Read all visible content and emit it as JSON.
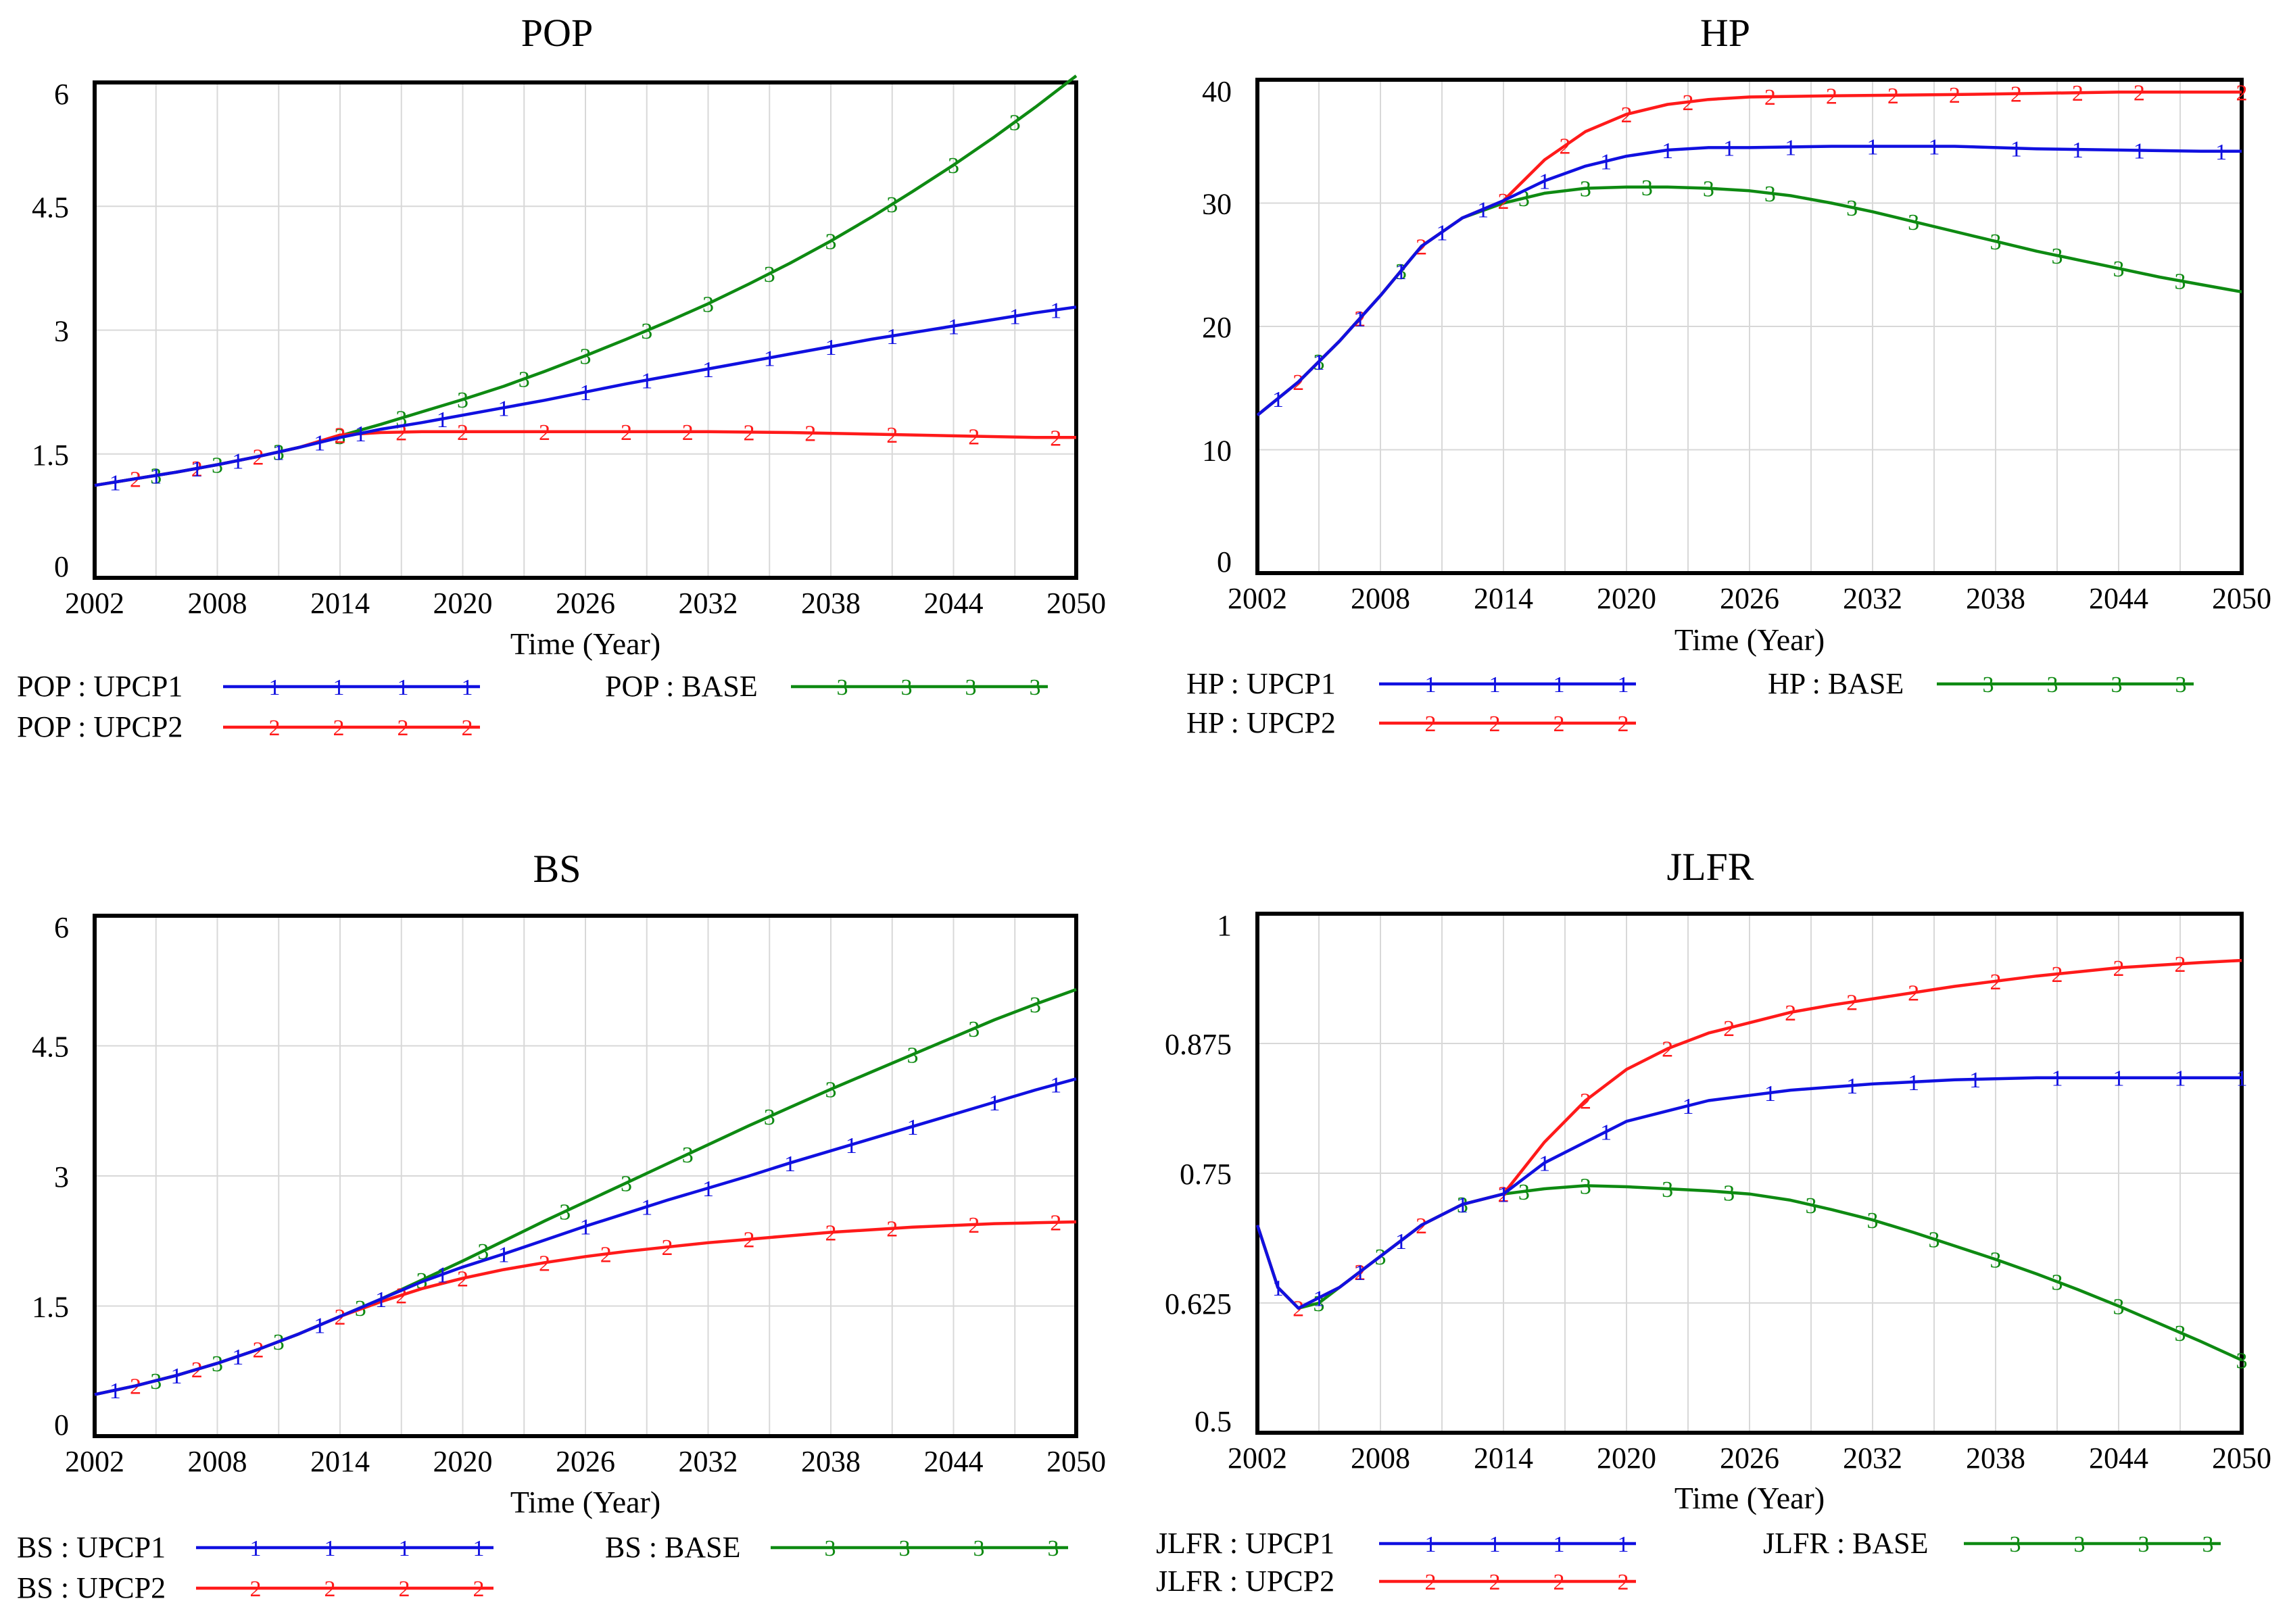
{
  "colors": {
    "upcp1": "#1010e0",
    "upcp2": "#ff1a1a",
    "base": "#0e8a12",
    "grid": "#d8d8d8",
    "frame": "#000000"
  },
  "chart_data": [
    {
      "id": "pop",
      "type": "line",
      "title": "POP",
      "xlabel": "Time (Year)",
      "ylabel": "",
      "xlim": [
        2002,
        2050
      ],
      "ylim": [
        0,
        6
      ],
      "xticks": [
        2002,
        2008,
        2014,
        2020,
        2026,
        2032,
        2038,
        2044,
        2050
      ],
      "xtick_labels": [
        "2002",
        "2008",
        "2014",
        "2020",
        "2026",
        "2032",
        "2038",
        "2044",
        "2050"
      ],
      "yticks": [
        0,
        1.5,
        3,
        4.5,
        6
      ],
      "ytick_labels": [
        "0",
        "1.5",
        "3",
        "4.5",
        "6"
      ],
      "series": [
        {
          "key": "upcp1",
          "name": "POP : UPCP1",
          "marker": "1",
          "x": [
            2002,
            2004,
            2006,
            2008,
            2010,
            2012,
            2014,
            2016,
            2018,
            2020,
            2022,
            2024,
            2026,
            2028,
            2030,
            2032,
            2034,
            2036,
            2038,
            2040,
            2042,
            2044,
            2046,
            2048,
            2050
          ],
          "values": [
            1.12,
            1.2,
            1.28,
            1.37,
            1.47,
            1.58,
            1.7,
            1.8,
            1.88,
            1.97,
            2.06,
            2.15,
            2.25,
            2.35,
            2.44,
            2.53,
            2.62,
            2.71,
            2.8,
            2.89,
            2.97,
            3.05,
            3.13,
            3.21,
            3.28
          ],
          "marker_x": [
            2003,
            2005,
            2007,
            2009,
            2011,
            2013,
            2015,
            2019,
            2022,
            2026,
            2029,
            2032,
            2035,
            2038,
            2041,
            2044,
            2047,
            2049
          ]
        },
        {
          "key": "upcp2",
          "name": "POP : UPCP2",
          "marker": "2",
          "x": [
            2002,
            2004,
            2006,
            2008,
            2010,
            2012,
            2014,
            2016,
            2018,
            2020,
            2026,
            2032,
            2036,
            2040,
            2044,
            2048,
            2050
          ],
          "values": [
            1.12,
            1.2,
            1.28,
            1.37,
            1.47,
            1.58,
            1.73,
            1.76,
            1.77,
            1.77,
            1.77,
            1.77,
            1.76,
            1.74,
            1.72,
            1.7,
            1.7
          ],
          "marker_x": [
            2004,
            2007,
            2010,
            2014,
            2017,
            2020,
            2024,
            2028,
            2031,
            2034,
            2037,
            2041,
            2045,
            2049
          ]
        },
        {
          "key": "base",
          "name": "POP : BASE",
          "marker": "3",
          "x": [
            2002,
            2004,
            2006,
            2008,
            2010,
            2012,
            2014,
            2016,
            2018,
            2020,
            2022,
            2024,
            2026,
            2028,
            2030,
            2032,
            2034,
            2036,
            2038,
            2040,
            2042,
            2044,
            2046,
            2048,
            2050
          ],
          "values": [
            1.12,
            1.2,
            1.28,
            1.37,
            1.47,
            1.58,
            1.72,
            1.86,
            2.01,
            2.16,
            2.32,
            2.5,
            2.69,
            2.89,
            3.1,
            3.32,
            3.56,
            3.81,
            4.08,
            4.37,
            4.68,
            5.0,
            5.34,
            5.7,
            6.08
          ],
          "marker_x": [
            2005,
            2008,
            2011,
            2014,
            2017,
            2020,
            2023,
            2026,
            2029,
            2032,
            2035,
            2038,
            2041,
            2044,
            2047
          ]
        }
      ]
    },
    {
      "id": "hp",
      "type": "line",
      "title": "HP",
      "xlabel": "Time (Year)",
      "ylabel": "",
      "xlim": [
        2002,
        2050
      ],
      "ylim": [
        0,
        40
      ],
      "xticks": [
        2002,
        2008,
        2014,
        2020,
        2026,
        2032,
        2038,
        2044,
        2050
      ],
      "xtick_labels": [
        "2002",
        "2008",
        "2014",
        "2020",
        "2026",
        "2032",
        "2038",
        "2044",
        "2050"
      ],
      "yticks": [
        0,
        10,
        20,
        30,
        40
      ],
      "ytick_labels": [
        "0",
        "10",
        "20",
        "30",
        "40"
      ],
      "series": [
        {
          "key": "upcp1",
          "name": "HP : UPCP1",
          "marker": "1",
          "x": [
            2002,
            2004,
            2006,
            2008,
            2010,
            2012,
            2014,
            2016,
            2018,
            2020,
            2022,
            2024,
            2026,
            2030,
            2036,
            2040,
            2044,
            2048,
            2050
          ],
          "values": [
            12.8,
            15.5,
            18.8,
            22.5,
            26.5,
            28.8,
            30.2,
            31.8,
            33.0,
            33.8,
            34.3,
            34.5,
            34.5,
            34.6,
            34.6,
            34.4,
            34.3,
            34.2,
            34.2
          ],
          "marker_x": [
            2003,
            2005,
            2007,
            2009,
            2011,
            2013,
            2016,
            2019,
            2022,
            2025,
            2028,
            2032,
            2035,
            2039,
            2042,
            2045,
            2049
          ]
        },
        {
          "key": "upcp2",
          "name": "HP : UPCP2",
          "marker": "2",
          "x": [
            2002,
            2004,
            2006,
            2008,
            2010,
            2012,
            2014,
            2016,
            2018,
            2020,
            2022,
            2024,
            2026,
            2030,
            2036,
            2040,
            2044,
            2048,
            2050
          ],
          "values": [
            12.8,
            15.5,
            18.8,
            22.5,
            26.5,
            28.8,
            30.2,
            33.5,
            35.8,
            37.2,
            38.0,
            38.4,
            38.6,
            38.7,
            38.8,
            38.9,
            39.0,
            39.0,
            39.0
          ],
          "marker_x": [
            2004,
            2007,
            2010,
            2014,
            2017,
            2020,
            2023,
            2027,
            2030,
            2033,
            2036,
            2039,
            2042,
            2045,
            2050
          ]
        },
        {
          "key": "base",
          "name": "HP : BASE",
          "marker": "3",
          "x": [
            2002,
            2004,
            2006,
            2008,
            2010,
            2012,
            2014,
            2016,
            2018,
            2020,
            2022,
            2024,
            2026,
            2028,
            2030,
            2032,
            2034,
            2036,
            2038,
            2040,
            2042,
            2044,
            2046,
            2048,
            2050
          ],
          "values": [
            12.8,
            15.5,
            18.8,
            22.5,
            26.5,
            28.8,
            30.0,
            30.8,
            31.2,
            31.3,
            31.3,
            31.2,
            31.0,
            30.6,
            30.0,
            29.3,
            28.5,
            27.7,
            26.9,
            26.1,
            25.4,
            24.7,
            24.0,
            23.4,
            22.8
          ],
          "marker_x": [
            2005,
            2009,
            2015,
            2018,
            2021,
            2024,
            2027,
            2031,
            2034,
            2038,
            2041,
            2044,
            2047
          ]
        }
      ]
    },
    {
      "id": "bs",
      "type": "line",
      "title": "BS",
      "xlabel": "Time (Year)",
      "ylabel": "",
      "xlim": [
        2002,
        2050
      ],
      "ylim": [
        0,
        6
      ],
      "xticks": [
        2002,
        2008,
        2014,
        2020,
        2026,
        2032,
        2038,
        2044,
        2050
      ],
      "xtick_labels": [
        "2002",
        "2008",
        "2014",
        "2020",
        "2026",
        "2032",
        "2038",
        "2044",
        "2050"
      ],
      "yticks": [
        0,
        1.5,
        3,
        4.5,
        6
      ],
      "ytick_labels": [
        "0",
        "1.5",
        "3",
        "4.5",
        "6"
      ],
      "series": [
        {
          "key": "upcp1",
          "name": "BS : UPCP1",
          "marker": "1",
          "x": [
            2002,
            2004,
            2006,
            2008,
            2010,
            2012,
            2014,
            2016,
            2018,
            2020,
            2022,
            2024,
            2026,
            2028,
            2030,
            2032,
            2034,
            2036,
            2038,
            2040,
            2042,
            2044,
            2046,
            2048,
            2050
          ],
          "values": [
            0.48,
            0.58,
            0.7,
            0.84,
            1.0,
            1.18,
            1.38,
            1.58,
            1.78,
            1.95,
            2.1,
            2.26,
            2.42,
            2.57,
            2.72,
            2.86,
            3.0,
            3.15,
            3.29,
            3.43,
            3.57,
            3.71,
            3.85,
            3.99,
            4.12
          ],
          "marker_x": [
            2003,
            2006,
            2009,
            2013,
            2016,
            2019,
            2022,
            2026,
            2029,
            2032,
            2036,
            2039,
            2042,
            2046,
            2049
          ]
        },
        {
          "key": "upcp2",
          "name": "BS : UPCP2",
          "marker": "2",
          "x": [
            2002,
            2004,
            2006,
            2008,
            2010,
            2012,
            2014,
            2016,
            2018,
            2020,
            2022,
            2024,
            2026,
            2028,
            2030,
            2032,
            2034,
            2036,
            2038,
            2040,
            2042,
            2044,
            2046,
            2048,
            2050
          ],
          "values": [
            0.48,
            0.58,
            0.7,
            0.84,
            1.0,
            1.18,
            1.38,
            1.55,
            1.7,
            1.82,
            1.92,
            2.0,
            2.07,
            2.13,
            2.18,
            2.23,
            2.27,
            2.31,
            2.35,
            2.38,
            2.41,
            2.43,
            2.45,
            2.46,
            2.47
          ],
          "marker_x": [
            2004,
            2007,
            2010,
            2014,
            2017,
            2020,
            2024,
            2027,
            2030,
            2034,
            2038,
            2041,
            2045,
            2049
          ]
        },
        {
          "key": "base",
          "name": "BS : BASE",
          "marker": "3",
          "x": [
            2002,
            2004,
            2006,
            2008,
            2010,
            2012,
            2014,
            2016,
            2018,
            2020,
            2022,
            2024,
            2026,
            2028,
            2030,
            2032,
            2034,
            2036,
            2038,
            2040,
            2042,
            2044,
            2046,
            2048,
            2050
          ],
          "values": [
            0.48,
            0.58,
            0.7,
            0.84,
            1.0,
            1.18,
            1.38,
            1.58,
            1.8,
            2.02,
            2.25,
            2.48,
            2.7,
            2.92,
            3.14,
            3.36,
            3.58,
            3.79,
            4.0,
            4.2,
            4.4,
            4.6,
            4.8,
            4.98,
            5.15
          ],
          "marker_x": [
            2005,
            2008,
            2011,
            2015,
            2018,
            2021,
            2025,
            2028,
            2031,
            2035,
            2038,
            2042,
            2045,
            2048
          ]
        }
      ]
    },
    {
      "id": "jlfr",
      "type": "line",
      "title": "JLFR",
      "xlabel": "Time (Year)",
      "ylabel": "",
      "xlim": [
        2002,
        2050
      ],
      "ylim": [
        0.5,
        1
      ],
      "xticks": [
        2002,
        2008,
        2014,
        2020,
        2026,
        2032,
        2038,
        2044,
        2050
      ],
      "xtick_labels": [
        "2002",
        "2008",
        "2014",
        "2020",
        "2026",
        "2032",
        "2038",
        "2044",
        "2050"
      ],
      "yticks": [
        0.5,
        0.625,
        0.75,
        0.875,
        1
      ],
      "ytick_labels": [
        "0.5",
        "0.625",
        "0.75",
        "0.875",
        "1"
      ],
      "series": [
        {
          "key": "upcp1",
          "name": "JLFR : UPCP1",
          "marker": "1",
          "x": [
            2002,
            2003,
            2004,
            2005,
            2006,
            2008,
            2010,
            2012,
            2014,
            2016,
            2018,
            2020,
            2022,
            2024,
            2026,
            2028,
            2030,
            2032,
            2036,
            2040,
            2044,
            2048,
            2050
          ],
          "values": [
            0.7,
            0.64,
            0.62,
            0.63,
            0.64,
            0.67,
            0.7,
            0.72,
            0.73,
            0.76,
            0.78,
            0.8,
            0.81,
            0.82,
            0.825,
            0.83,
            0.833,
            0.836,
            0.84,
            0.842,
            0.842,
            0.842,
            0.842
          ],
          "marker_x": [
            2003,
            2005,
            2007,
            2009,
            2012,
            2014,
            2016,
            2019,
            2023,
            2027,
            2031,
            2034,
            2037,
            2041,
            2044,
            2047,
            2050
          ]
        },
        {
          "key": "upcp2",
          "name": "JLFR : UPCP2",
          "marker": "2",
          "x": [
            2002,
            2003,
            2004,
            2005,
            2006,
            2008,
            2010,
            2012,
            2014,
            2016,
            2018,
            2020,
            2022,
            2024,
            2026,
            2028,
            2030,
            2032,
            2036,
            2040,
            2044,
            2048,
            2050
          ],
          "values": [
            0.7,
            0.64,
            0.62,
            0.63,
            0.64,
            0.67,
            0.7,
            0.72,
            0.73,
            0.78,
            0.82,
            0.85,
            0.87,
            0.885,
            0.895,
            0.905,
            0.912,
            0.918,
            0.93,
            0.94,
            0.948,
            0.953,
            0.955
          ],
          "marker_x": [
            2004,
            2007,
            2010,
            2014,
            2018,
            2022,
            2025,
            2028,
            2031,
            2034,
            2038,
            2041,
            2044,
            2047
          ]
        },
        {
          "key": "base",
          "name": "JLFR : BASE",
          "marker": "3",
          "x": [
            2002,
            2003,
            2004,
            2005,
            2006,
            2008,
            2010,
            2012,
            2014,
            2016,
            2018,
            2020,
            2022,
            2024,
            2026,
            2028,
            2030,
            2032,
            2034,
            2036,
            2038,
            2040,
            2042,
            2044,
            2046,
            2048,
            2050
          ],
          "values": [
            0.7,
            0.64,
            0.62,
            0.625,
            0.64,
            0.67,
            0.7,
            0.72,
            0.73,
            0.735,
            0.738,
            0.737,
            0.735,
            0.733,
            0.73,
            0.724,
            0.715,
            0.705,
            0.693,
            0.68,
            0.667,
            0.653,
            0.638,
            0.622,
            0.605,
            0.588,
            0.57
          ],
          "marker_x": [
            2005,
            2008,
            2012,
            2015,
            2018,
            2022,
            2025,
            2029,
            2032,
            2035,
            2038,
            2041,
            2044,
            2047,
            2050
          ]
        }
      ]
    }
  ]
}
